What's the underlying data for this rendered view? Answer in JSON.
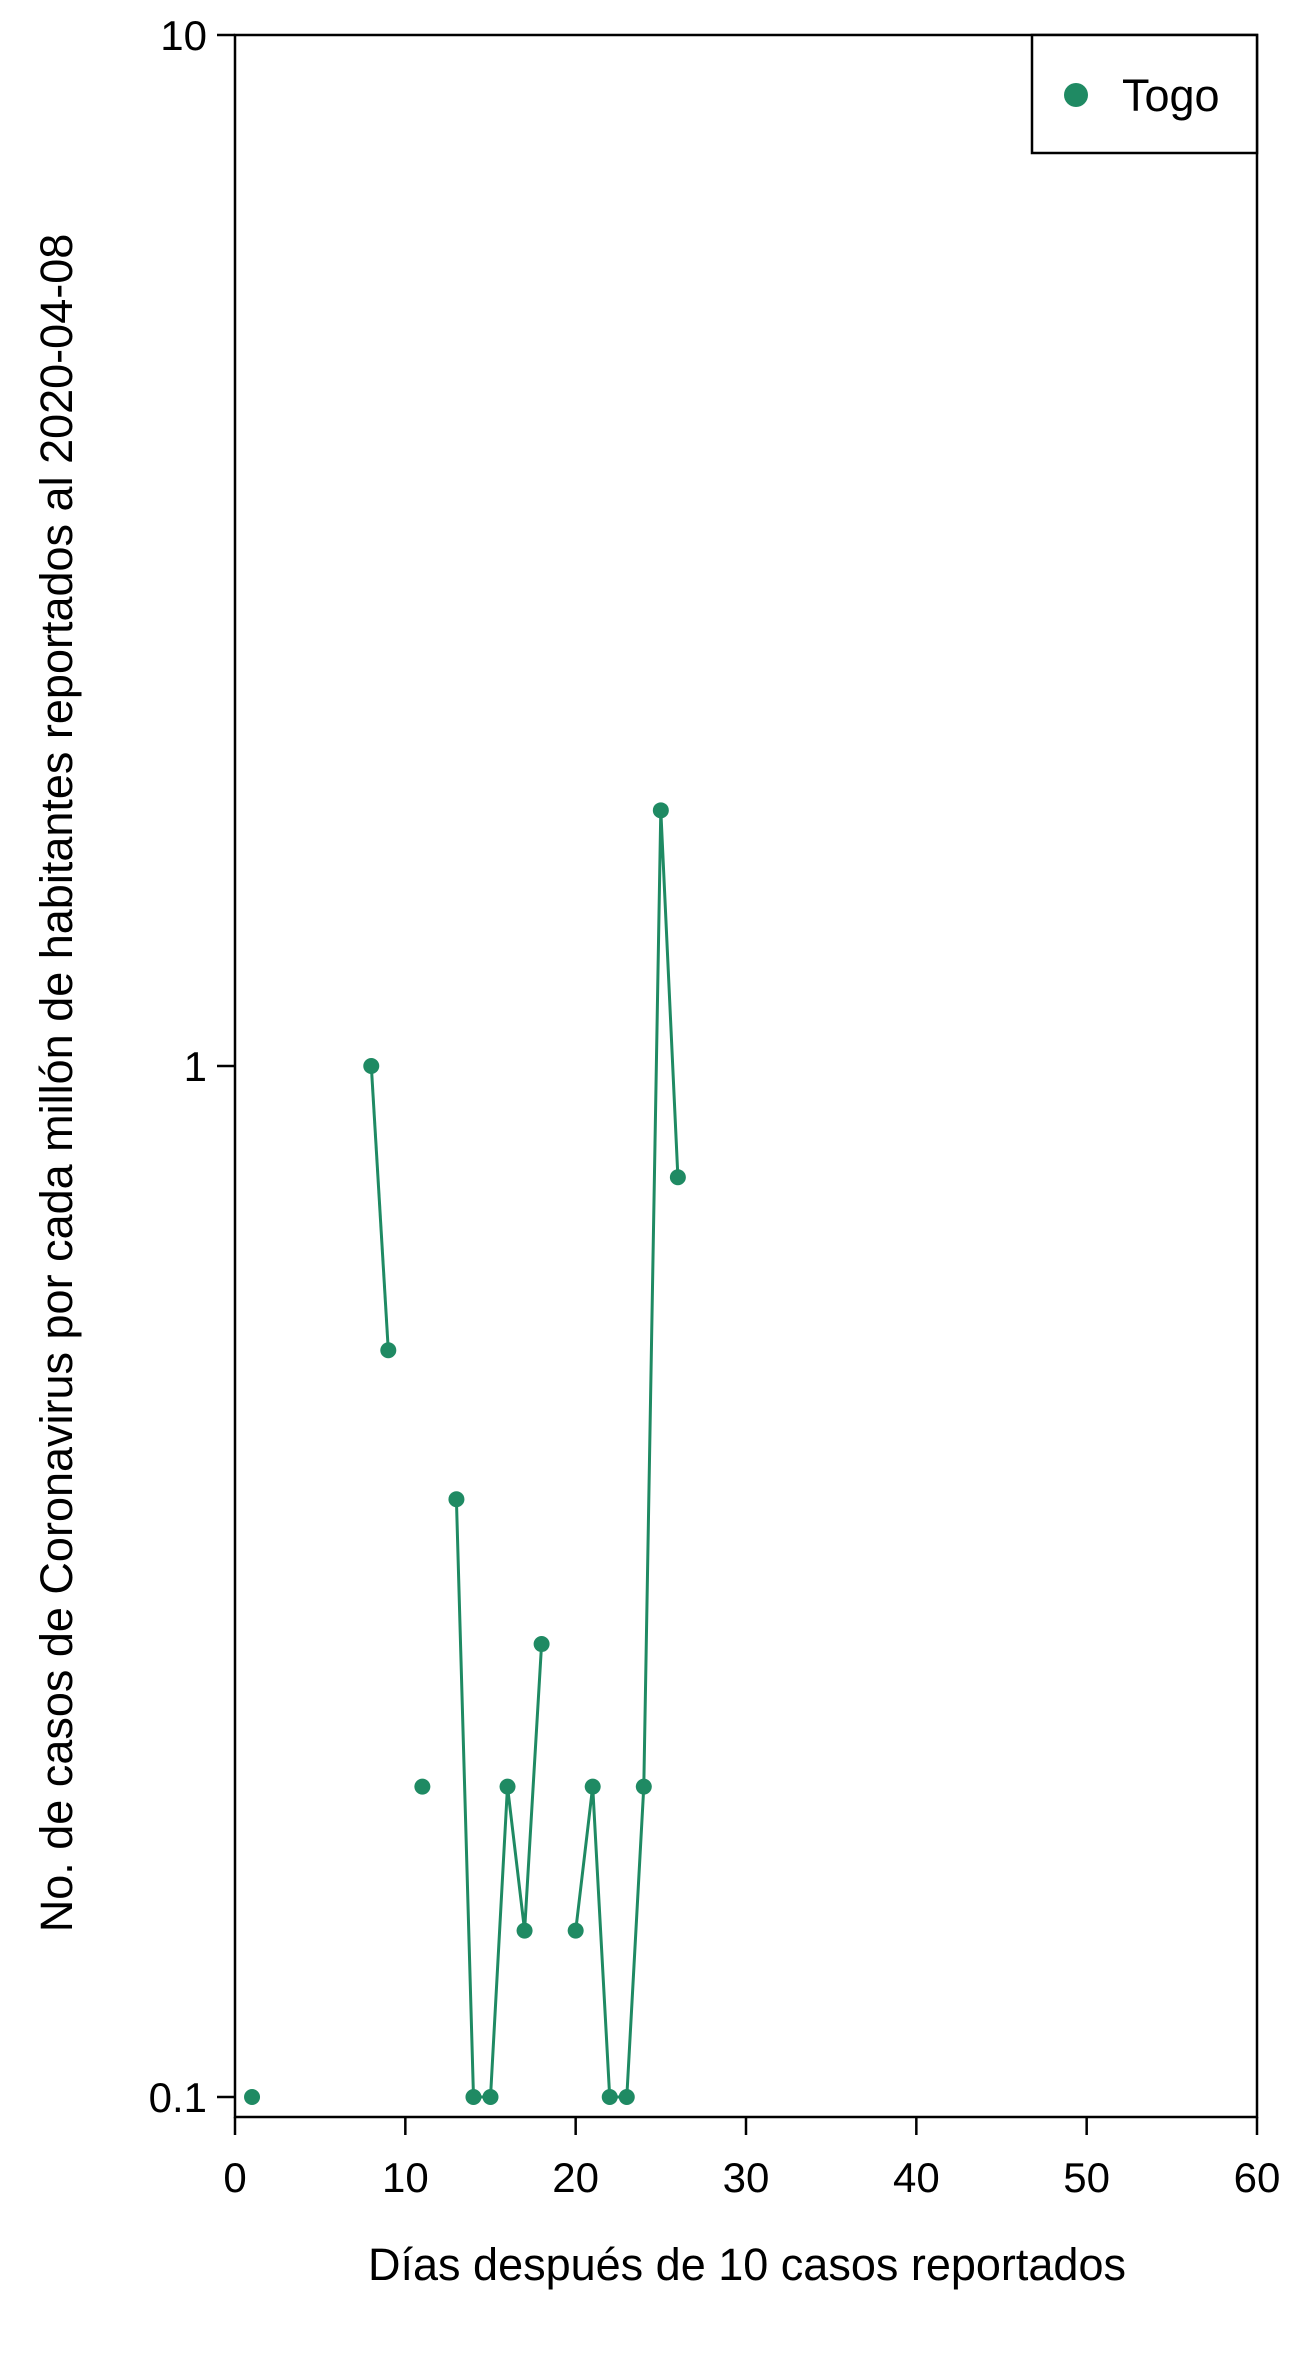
{
  "chart_data": {
    "type": "line",
    "xlabel": "Días después de 10 casos reportados",
    "ylabel": "No. de casos de Coronavirus por cada millón de habitantes reportados al 2020-04-08",
    "xlim": [
      0,
      60
    ],
    "ylim": [
      0.1,
      10
    ],
    "y_scale": "log",
    "x_ticks": [
      0,
      10,
      20,
      30,
      40,
      50,
      60
    ],
    "y_ticks": [
      {
        "value": 0.1,
        "label": "0.1"
      },
      {
        "value": 1,
        "label": "1"
      },
      {
        "value": 10,
        "label": "10"
      }
    ],
    "grid": false,
    "legend_position": "top-right",
    "series": [
      {
        "name": "Togo",
        "color": "#1f8a63",
        "points": [
          {
            "x": 1,
            "y": 0.1
          },
          {
            "x": 8,
            "y": 1.0
          },
          {
            "x": 9,
            "y": 0.53
          },
          {
            "x": 11,
            "y": 0.2
          },
          {
            "x": 13,
            "y": 0.38
          },
          {
            "x": 14,
            "y": 0.1
          },
          {
            "x": 15,
            "y": 0.1
          },
          {
            "x": 16,
            "y": 0.2
          },
          {
            "x": 17,
            "y": 0.145
          },
          {
            "x": 18,
            "y": 0.275
          },
          {
            "x": 20,
            "y": 0.145
          },
          {
            "x": 21,
            "y": 0.2
          },
          {
            "x": 22,
            "y": 0.1
          },
          {
            "x": 23,
            "y": 0.1
          },
          {
            "x": 24,
            "y": 0.2
          },
          {
            "x": 25,
            "y": 1.77
          },
          {
            "x": 26,
            "y": 0.78
          }
        ],
        "line_segments": [
          [
            8,
            9
          ],
          [
            13,
            18
          ],
          [
            20,
            26
          ]
        ]
      }
    ]
  }
}
